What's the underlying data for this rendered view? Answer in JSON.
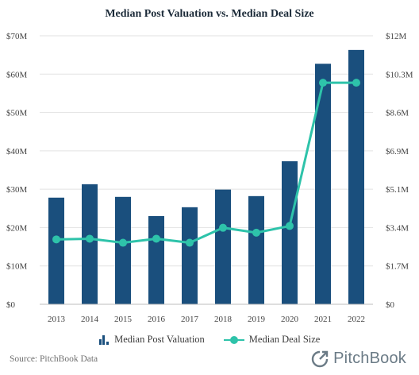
{
  "chart_data": {
    "type": "bar",
    "title": "Median Post Valuation vs. Median Deal Size",
    "categories": [
      "2013",
      "2014",
      "2015",
      "2016",
      "2017",
      "2018",
      "2019",
      "2020",
      "2021",
      "2022"
    ],
    "series": [
      {
        "name": "Median Post Valuation",
        "type": "bar",
        "axis": "left",
        "color": "#1a4f7d",
        "values": [
          27.8,
          31.3,
          28.0,
          23.0,
          25.3,
          29.9,
          28.2,
          37.3,
          62.7,
          66.3
        ]
      },
      {
        "name": "Median Deal Size",
        "type": "line",
        "axis": "right",
        "color": "#2ec3aa",
        "values": [
          2.9,
          2.93,
          2.75,
          2.93,
          2.75,
          3.42,
          3.2,
          3.5,
          9.9,
          9.9
        ]
      }
    ],
    "y_left": {
      "ticks": [
        "$0",
        "$10M",
        "$20M",
        "$30M",
        "$40M",
        "$50M",
        "$60M",
        "$70M"
      ],
      "tick_values": [
        0,
        10,
        20,
        30,
        40,
        50,
        60,
        70
      ],
      "ylim": [
        0,
        70
      ]
    },
    "y_right": {
      "ticks": [
        "$0",
        "$1.7M",
        "$3.4M",
        "$5.1M",
        "$6.9M",
        "$8.6M",
        "$10.3M",
        "$12M"
      ],
      "tick_values": [
        0,
        1.714,
        3.429,
        5.143,
        6.857,
        8.571,
        10.286,
        12
      ],
      "ylim": [
        0,
        12
      ]
    },
    "grid": true,
    "legend_position": "bottom-center"
  },
  "source_text": "Source: PitchBook Data",
  "logo_text": "PitchBook"
}
